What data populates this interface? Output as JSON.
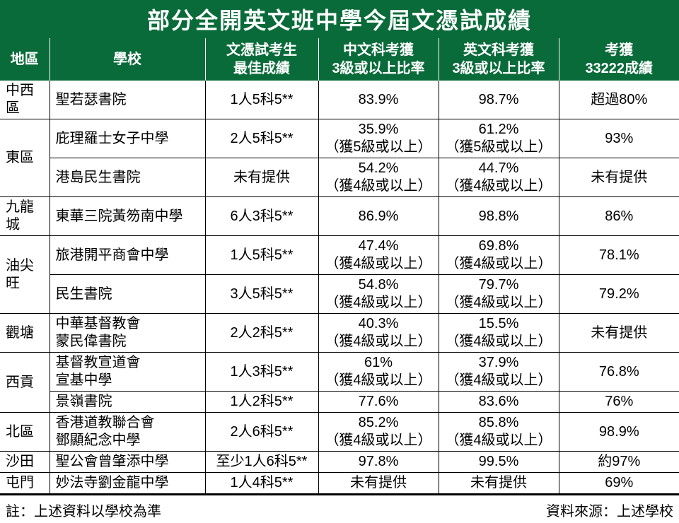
{
  "title": "部分全開英文班中學今屆文憑試成績",
  "colors": {
    "header_bg": "#0a6b3a",
    "title_bg": "#0a6b3a",
    "header_text": "#ffffff",
    "title_text": "#ffffff",
    "body_text": "#000000",
    "border": "#000000",
    "background": "#ffffff"
  },
  "fontsizes": {
    "title": 32,
    "header": 20,
    "body": 20,
    "footnote": 20
  },
  "border_width": 1,
  "columns": [
    {
      "key": "region",
      "label": "地區"
    },
    {
      "key": "school",
      "label": "學校"
    },
    {
      "key": "best",
      "label": "文憑試考生",
      "label2": "最佳成績"
    },
    {
      "key": "chi",
      "label": "中文科考獲",
      "label2": "3級或以上比率"
    },
    {
      "key": "eng",
      "label": "英文科考獲",
      "label2": "3級或以上比率"
    },
    {
      "key": "c33222",
      "label": "考獲",
      "label2": "33222成績"
    }
  ],
  "rows": [
    {
      "region": "中西區",
      "region_rowspan": 1,
      "school": "聖若瑟書院",
      "best": "1人5科5**",
      "chi": "83.9%",
      "eng": "98.7%",
      "c33222": "超過80%",
      "region_bb": true,
      "row_bb": true
    },
    {
      "region": "東區",
      "region_rowspan": 2,
      "school": "庇理羅士女子中學",
      "best": "2人5科5**",
      "chi": "35.9%",
      "chi_sub": "（獲5級或以上）",
      "eng": "61.2%",
      "eng_sub": "（獲5級或以上）",
      "c33222": "93%",
      "row_bb": true
    },
    {
      "school": "港島民生書院",
      "best": "未有提供",
      "chi": "54.2%",
      "chi_sub": "（獲4級或以上）",
      "eng": "44.7%",
      "eng_sub": "（獲4級或以上）",
      "c33222": "未有提供",
      "region_bb": true,
      "row_bb": true
    },
    {
      "region": "九龍城",
      "region_rowspan": 1,
      "school": "東華三院黃笏南中學",
      "best": "6人3科5**",
      "chi": "86.9%",
      "eng": "98.8%",
      "c33222": "86%",
      "region_bb": true,
      "row_bb": true
    },
    {
      "region": "油尖旺",
      "region_rowspan": 2,
      "school": "旅港開平商會中學",
      "best": "1人5科5**",
      "chi": "47.4%",
      "chi_sub": "（獲4級或以上）",
      "eng": "69.8%",
      "eng_sub": "（獲4級或以上）",
      "c33222": "78.1%",
      "row_bb": true
    },
    {
      "school": "民生書院",
      "best": "3人5科5**",
      "chi": "54.8%",
      "chi_sub": "（獲4級或以上）",
      "eng": "79.7%",
      "eng_sub": "（獲4級或以上）",
      "c33222": "79.2%",
      "region_bb": true,
      "row_bb": true
    },
    {
      "region": "觀塘",
      "region_rowspan": 1,
      "school": "中華基督教會",
      "school2": "蒙民偉書院",
      "best": "2人2科5**",
      "chi": "40.3%",
      "chi_sub": "（獲4級或以上）",
      "eng": "15.5%",
      "eng_sub": "（獲4級或以上）",
      "c33222": "未有提供",
      "region_bb": true,
      "row_bb": true
    },
    {
      "region": "西貢",
      "region_rowspan": 2,
      "school": "基督教宣道會",
      "school2": "宣基中學",
      "best": "1人3科5**",
      "chi": "61%",
      "chi_sub": "（獲4級或以上）",
      "eng": "37.9%",
      "eng_sub": "（獲4級或以上）",
      "c33222": "76.8%",
      "row_bb": true
    },
    {
      "school": "景嶺書院",
      "best": "1人2科5**",
      "chi": "77.6%",
      "eng": "83.6%",
      "c33222": "76%",
      "region_bb": true,
      "row_bb": true
    },
    {
      "region": "北區",
      "region_rowspan": 1,
      "school": "香港道教聯合會",
      "school2": "鄧顯紀念中學",
      "best": "2人6科5**",
      "chi": "85.2%",
      "chi_sub": "（獲4級或以上）",
      "eng": "85.8%",
      "eng_sub": "（獲4級或以上）",
      "c33222": "98.9%",
      "region_bb": true,
      "row_bb": true
    },
    {
      "region": "沙田",
      "region_rowspan": 1,
      "school": "聖公會曾肇添中學",
      "best": "至少1人6科5**",
      "chi": "97.8%",
      "eng": "99.5%",
      "c33222": "約97%",
      "region_bb": true,
      "row_bb": true
    },
    {
      "region": "屯門",
      "region_rowspan": 1,
      "school": "妙法寺劉金龍中學",
      "best": "1人4科5**",
      "chi": "未有提供",
      "eng": "未有提供",
      "c33222": "69%",
      "region_bb": true,
      "row_bb": true,
      "table_end": true
    }
  ],
  "footnote_left": "註：上述資料以學校為準",
  "footnote_right": "資料來源：上述學校"
}
